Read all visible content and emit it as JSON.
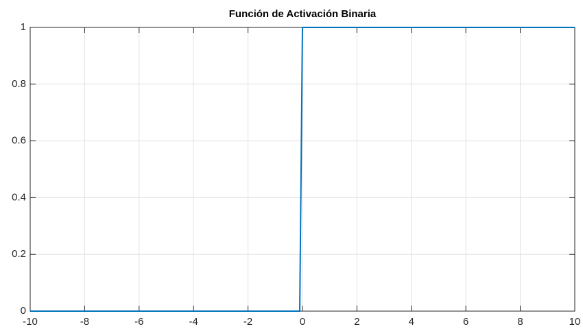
{
  "chart_data": {
    "type": "line",
    "title": "Función de Activación Binaria",
    "x": [
      -10,
      -0.1,
      0,
      10
    ],
    "values": [
      0,
      0,
      1,
      1
    ],
    "color": "#0072bd",
    "xlim": [
      -10,
      10
    ],
    "xticks": [
      -10,
      -8,
      -6,
      -4,
      -2,
      0,
      2,
      4,
      6,
      8,
      10
    ],
    "ylim": [
      0,
      1
    ],
    "yticks": [
      0,
      0.2,
      0.4,
      0.6,
      0.8,
      1
    ],
    "grid": true
  }
}
